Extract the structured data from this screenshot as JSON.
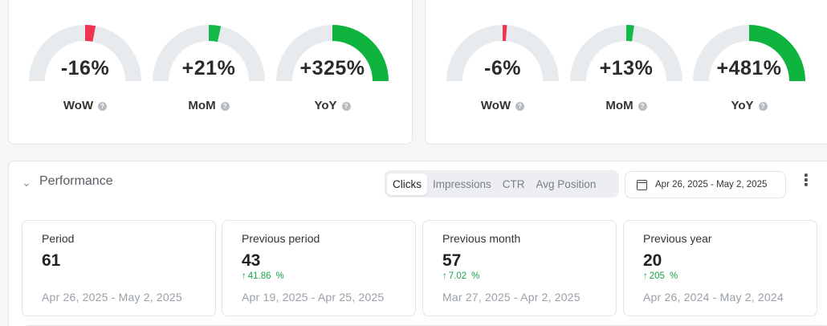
{
  "left_gauges": {
    "items": [
      {
        "value": "-16%",
        "label": "WoW",
        "fraction": 0.06,
        "color": "#f0344f"
      },
      {
        "value": "+21%",
        "label": "MoM",
        "fraction": 0.07,
        "color": "#17b84a"
      },
      {
        "value": "+325%",
        "label": "YoY",
        "fraction": 0.5,
        "color": "#0fb43f"
      }
    ]
  },
  "right_gauges": {
    "items": [
      {
        "value": "-6%",
        "label": "WoW",
        "fraction": 0.025,
        "color": "#f0344f"
      },
      {
        "value": "+13%",
        "label": "MoM",
        "fraction": 0.045,
        "color": "#17b84a"
      },
      {
        "value": "+481%",
        "label": "YoY",
        "fraction": 0.5,
        "color": "#0fb43f"
      }
    ]
  },
  "performance": {
    "title": "Performance",
    "tabs": [
      "Clicks",
      "Impressions",
      "CTR",
      "Avg Position"
    ],
    "active_tab": "Clicks",
    "date_range": "Apr 26, 2025 - May 2, 2025",
    "stats": [
      {
        "label": "Period",
        "value": "61",
        "delta": "",
        "range": "Apr 26, 2025 - May 2, 2025"
      },
      {
        "label": "Previous period",
        "value": "43",
        "delta": "41.86",
        "range": "Apr 19, 2025 - Apr 25, 2025"
      },
      {
        "label": "Previous month",
        "value": "57",
        "delta": "7.02",
        "range": "Mar 27, 2025 - Apr 2, 2025"
      },
      {
        "label": "Previous year",
        "value": "20",
        "delta": "205",
        "range": "Apr 26, 2024 - May 2, 2024"
      }
    ]
  },
  "colors": {
    "track": "#e8ebee",
    "positive": "#1aa34a",
    "negative": "#f0344f"
  },
  "icons": {
    "help": "question-circle-icon",
    "collapse": "chevron-down-icon",
    "calendar": "calendar-icon",
    "more": "more-vertical-icon"
  }
}
